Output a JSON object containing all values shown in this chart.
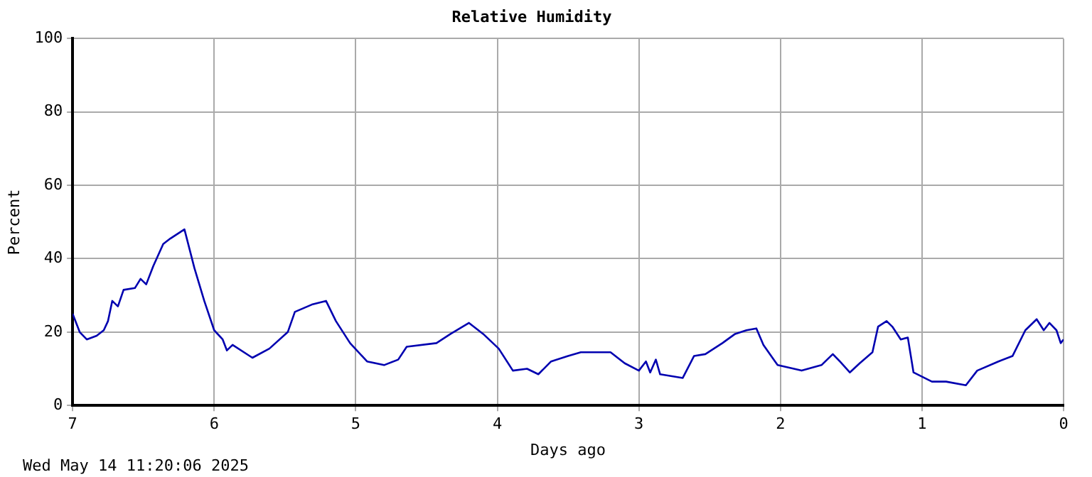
{
  "chart_data": {
    "type": "line",
    "title": "Relative Humidity",
    "xlabel": "Days ago",
    "ylabel": "Percent",
    "annotations": [
      "Wed May 14 11:20:06 2025"
    ],
    "x": [
      7,
      6.95,
      6.9,
      6.83,
      6.78,
      6.75,
      6.72,
      6.68,
      6.64,
      6.56,
      6.52,
      6.48,
      6.43,
      6.36,
      6.31,
      6.21,
      6.14,
      6.07,
      6.0,
      5.94,
      5.91,
      5.87,
      5.73,
      5.61,
      5.48,
      5.43,
      5.31,
      5.21,
      5.14,
      5.04,
      4.92,
      4.8,
      4.7,
      4.64,
      4.43,
      4.33,
      4.2,
      4.1,
      3.99,
      3.89,
      3.79,
      3.71,
      3.62,
      3.5,
      3.41,
      3.2,
      3.1,
      3.0,
      2.95,
      2.92,
      2.88,
      2.85,
      2.69,
      2.61,
      2.53,
      2.41,
      2.32,
      2.24,
      2.17,
      2.12,
      2.02,
      1.85,
      1.71,
      1.63,
      1.58,
      1.51,
      1.44,
      1.35,
      1.31,
      1.25,
      1.21,
      1.15,
      1.1,
      1.06,
      0.93,
      0.83,
      0.69,
      0.61,
      0.46,
      0.36,
      0.27,
      0.19,
      0.14,
      0.1,
      0.05,
      0.02,
      0
    ],
    "series": [
      {
        "color": "#0000b0",
        "values": [
          25,
          20,
          18,
          19,
          20.5,
          23,
          28.5,
          27,
          31.5,
          32,
          34.5,
          33,
          38,
          44,
          45.5,
          48,
          37.5,
          28.5,
          20.5,
          18,
          15,
          16.5,
          13,
          15.5,
          20,
          25.5,
          27.5,
          28.5,
          23,
          17,
          12,
          11,
          12.5,
          16,
          17,
          19.5,
          22.5,
          19.5,
          15.5,
          9.5,
          10,
          8.5,
          12,
          13.5,
          14.5,
          14.5,
          11.5,
          9.5,
          12,
          9,
          12.5,
          8.5,
          7.5,
          13.5,
          14,
          17,
          19.5,
          20.5,
          21,
          16.5,
          11,
          9.5,
          11,
          14,
          12,
          9,
          11.5,
          14.5,
          21.5,
          23,
          21.5,
          18,
          18.5,
          9,
          6.5,
          6.5,
          5.5,
          9.5,
          12,
          13.5,
          20.5,
          23.5,
          20.5,
          22.5,
          20.5,
          17,
          18
        ]
      }
    ],
    "xlim": [
      7,
      0
    ],
    "xticks": [
      7,
      6,
      5,
      4,
      3,
      2,
      1,
      0
    ],
    "ylim": [
      0,
      100
    ],
    "yticks": [
      0,
      20,
      40,
      60,
      80,
      100
    ],
    "grid": true,
    "line_style": "solid",
    "marker": "none"
  }
}
